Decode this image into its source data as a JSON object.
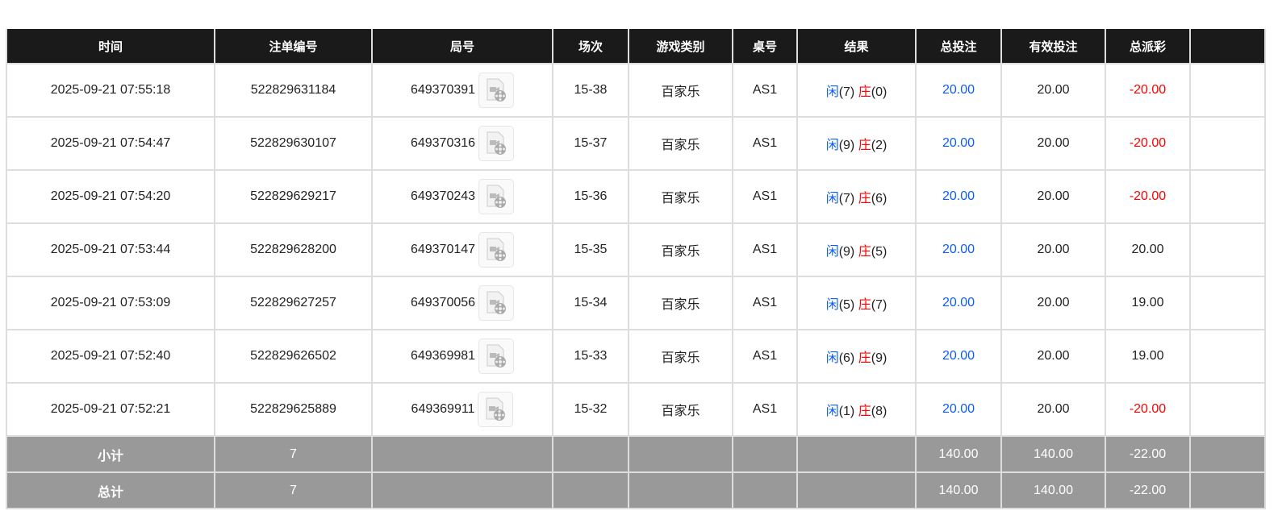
{
  "headers": [
    "时间",
    "注单编号",
    "局号",
    "场次",
    "游戏类别",
    "桌号",
    "结果",
    "总投注",
    "有效投注",
    "总派彩",
    ""
  ],
  "rows": [
    {
      "time": "2025-09-21 07:55:18",
      "bet_id": "522829631184",
      "round": "649370391",
      "session": "15-38",
      "game": "百家乐",
      "table": "AS1",
      "player_label": "闲",
      "player": "(7)",
      "banker_label": "庄",
      "banker": "(0)",
      "total_bet": "20.00",
      "valid_bet": "20.00",
      "payout": "-20.00",
      "payout_neg": true
    },
    {
      "time": "2025-09-21 07:54:47",
      "bet_id": "522829630107",
      "round": "649370316",
      "session": "15-37",
      "game": "百家乐",
      "table": "AS1",
      "player_label": "闲",
      "player": "(9)",
      "banker_label": "庄",
      "banker": "(2)",
      "total_bet": "20.00",
      "valid_bet": "20.00",
      "payout": "-20.00",
      "payout_neg": true
    },
    {
      "time": "2025-09-21 07:54:20",
      "bet_id": "522829629217",
      "round": "649370243",
      "session": "15-36",
      "game": "百家乐",
      "table": "AS1",
      "player_label": "闲",
      "player": "(7)",
      "banker_label": "庄",
      "banker": "(6)",
      "total_bet": "20.00",
      "valid_bet": "20.00",
      "payout": "-20.00",
      "payout_neg": true
    },
    {
      "time": "2025-09-21 07:53:44",
      "bet_id": "522829628200",
      "round": "649370147",
      "session": "15-35",
      "game": "百家乐",
      "table": "AS1",
      "player_label": "闲",
      "player": "(9)",
      "banker_label": "庄",
      "banker": "(5)",
      "total_bet": "20.00",
      "valid_bet": "20.00",
      "payout": "20.00",
      "payout_neg": false
    },
    {
      "time": "2025-09-21 07:53:09",
      "bet_id": "522829627257",
      "round": "649370056",
      "session": "15-34",
      "game": "百家乐",
      "table": "AS1",
      "player_label": "闲",
      "player": "(5)",
      "banker_label": "庄",
      "banker": "(7)",
      "total_bet": "20.00",
      "valid_bet": "20.00",
      "payout": "19.00",
      "payout_neg": false
    },
    {
      "time": "2025-09-21 07:52:40",
      "bet_id": "522829626502",
      "round": "649369981",
      "session": "15-33",
      "game": "百家乐",
      "table": "AS1",
      "player_label": "闲",
      "player": "(6)",
      "banker_label": "庄",
      "banker": "(9)",
      "total_bet": "20.00",
      "valid_bet": "20.00",
      "payout": "19.00",
      "payout_neg": false
    },
    {
      "time": "2025-09-21 07:52:21",
      "bet_id": "522829625889",
      "round": "649369911",
      "session": "15-32",
      "game": "百家乐",
      "table": "AS1",
      "player_label": "闲",
      "player": "(1)",
      "banker_label": "庄",
      "banker": "(8)",
      "total_bet": "20.00",
      "valid_bet": "20.00",
      "payout": "-20.00",
      "payout_neg": true
    }
  ],
  "subtotal": {
    "label": "小计",
    "count": "7",
    "total_bet": "140.00",
    "valid_bet": "140.00",
    "payout": "-22.00"
  },
  "total": {
    "label": "总计",
    "count": "7",
    "total_bet": "140.00",
    "valid_bet": "140.00",
    "payout": "-22.00"
  },
  "colors": {
    "header_bg": "#1a1a1a",
    "summary_bg": "#999999",
    "blue": "#0a5cff",
    "red": "#ff0000"
  },
  "icons": {
    "replay": "video-replay-icon"
  }
}
